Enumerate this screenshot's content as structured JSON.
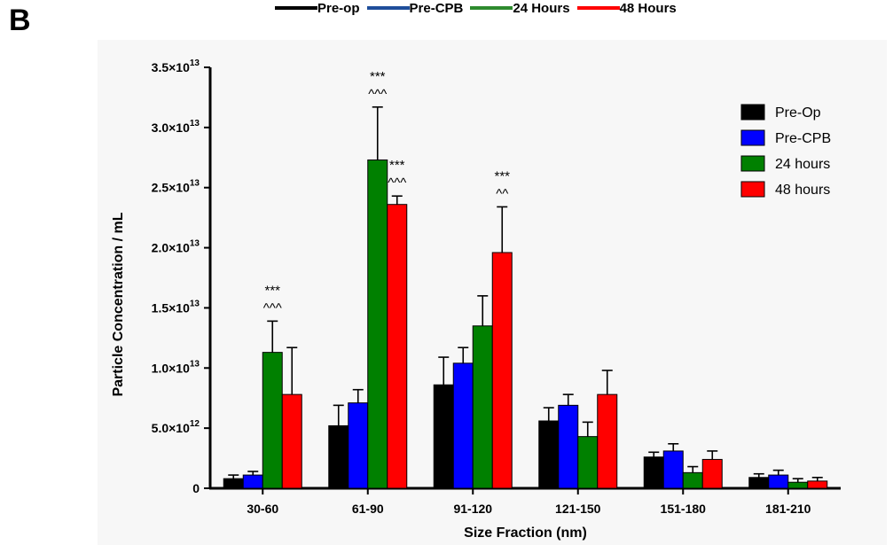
{
  "panel_label": "B",
  "top_legend": [
    {
      "label": "Pre-op",
      "color": "#000000"
    },
    {
      "label": "Pre-CPB",
      "color": "#1f4e9b"
    },
    {
      "label": "24 Hours",
      "color": "#2e8b2e"
    },
    {
      "label": "48 Hours",
      "color": "#ff0000"
    }
  ],
  "chart_data": {
    "type": "bar",
    "categories": [
      "30-60",
      "61-90",
      "91-120",
      "121-150",
      "151-180",
      "181-210"
    ],
    "series": [
      {
        "name": "Pre-Op",
        "color": "#000000",
        "values": [
          800000000000.0,
          5200000000000.0,
          8600000000000.0,
          5600000000000.0,
          2600000000000.0,
          900000000000.0
        ],
        "errors": [
          300000000000.0,
          1700000000000.0,
          2300000000000.0,
          1100000000000.0,
          400000000000.0,
          300000000000.0
        ]
      },
      {
        "name": "Pre-CPB",
        "color": "#0000ff",
        "values": [
          1100000000000.0,
          7100000000000.0,
          10400000000000.0,
          6900000000000.0,
          3100000000000.0,
          1100000000000.0
        ],
        "errors": [
          300000000000.0,
          1100000000000.0,
          1300000000000.0,
          900000000000.0,
          600000000000.0,
          400000000000.0
        ]
      },
      {
        "name": "24 hours",
        "color": "#008000",
        "values": [
          11300000000000.0,
          27300000000000.0,
          13500000000000.0,
          4300000000000.0,
          1300000000000.0,
          500000000000.0
        ],
        "errors": [
          2600000000000.0,
          4400000000000.0,
          2500000000000.0,
          1200000000000.0,
          500000000000.0,
          300000000000.0
        ]
      },
      {
        "name": "48 hours",
        "color": "#ff0000",
        "values": [
          7800000000000.0,
          23600000000000.0,
          19600000000000.0,
          7800000000000.0,
          2400000000000.0,
          600000000000.0
        ],
        "errors": [
          3900000000000.0,
          700000000000.0,
          3800000000000.0,
          2000000000000.0,
          700000000000.0,
          300000000000.0
        ]
      }
    ],
    "ylim": [
      0,
      35000000000000.0
    ],
    "yticks": [
      {
        "value": 0,
        "mantissa": "0",
        "exp": ""
      },
      {
        "value": 5000000000000.0,
        "mantissa": "5.0×10",
        "exp": "12"
      },
      {
        "value": 10000000000000.0,
        "mantissa": "1.0×10",
        "exp": "13"
      },
      {
        "value": 15000000000000.0,
        "mantissa": "1.5×10",
        "exp": "13"
      },
      {
        "value": 20000000000000.0,
        "mantissa": "2.0×10",
        "exp": "13"
      },
      {
        "value": 25000000000000.0,
        "mantissa": "2.5×10",
        "exp": "13"
      },
      {
        "value": 30000000000000.0,
        "mantissa": "3.0×10",
        "exp": "13"
      },
      {
        "value": 35000000000000.0,
        "mantissa": "3.5×10",
        "exp": "13"
      }
    ],
    "xlabel": "Size Fraction (nm)",
    "ylabel": "Particle Concentration / mL",
    "legend_position": "top-right",
    "annotations": [
      {
        "category": 0,
        "series": 2,
        "lines": [
          "***",
          "^^^"
        ]
      },
      {
        "category": 1,
        "series": 2,
        "lines": [
          "***",
          "^^^"
        ]
      },
      {
        "category": 1,
        "series": 3,
        "lines": [
          "***",
          "^^^"
        ]
      },
      {
        "category": 2,
        "series": 3,
        "lines": [
          "***",
          "^^"
        ]
      }
    ]
  }
}
